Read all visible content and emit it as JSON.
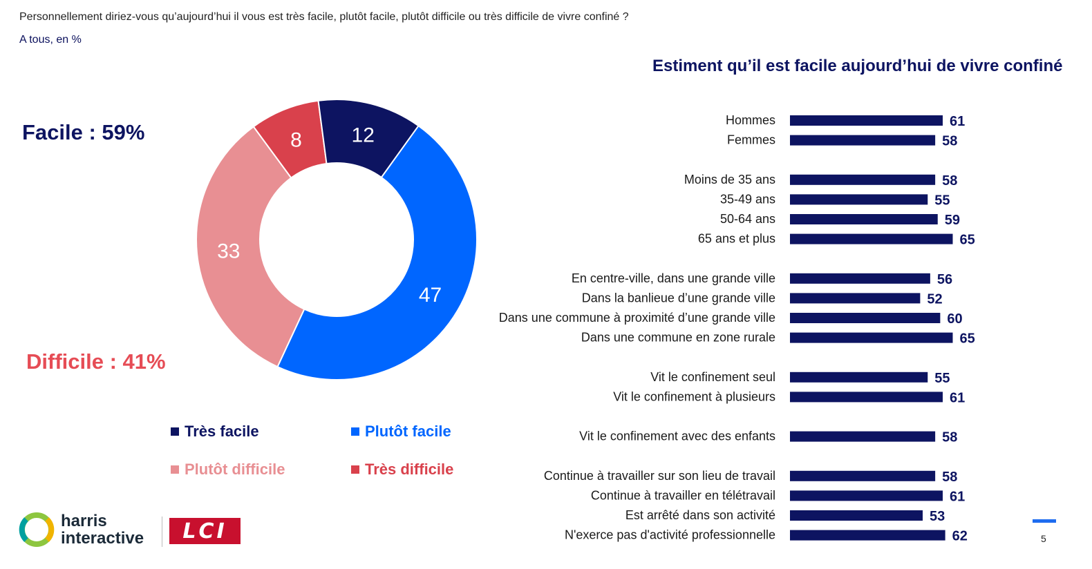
{
  "header": {
    "question": "Personnellement diriez-vous qu’aujourd’hui il vous est très facile, plutôt facile, plutôt difficile ou très difficile de vivre confiné ?",
    "base": "A tous, en %"
  },
  "totals": {
    "facile": "Facile : 59%",
    "difficile": "Difficile : 41%"
  },
  "colors": {
    "tres_facile": "#0d1461",
    "plutot_facile": "#0066ff",
    "plutot_difficile": "#e88f93",
    "tres_difficile": "#d9414c",
    "bar": "#0d1461",
    "facile_text": "#0d1461",
    "difficile_text": "#e64c55"
  },
  "chart_data": [
    {
      "type": "pie",
      "donut": true,
      "start": "top, clockwise: Plutôt facile, Plutôt difficile, Très difficile, Très facile",
      "slices": [
        {
          "name": "Plutôt facile",
          "value": 47,
          "label": "47",
          "color": "#0066ff"
        },
        {
          "name": "Plutôt difficile",
          "value": 33,
          "label": "33",
          "color": "#e88f93"
        },
        {
          "name": "Très difficile",
          "value": 8,
          "label": "8",
          "color": "#d9414c"
        },
        {
          "name": "Très facile",
          "value": 12,
          "label": "12",
          "color": "#0d1461"
        }
      ],
      "legend": [
        {
          "label": "Très facile",
          "color": "#0d1461"
        },
        {
          "label": "Plutôt facile",
          "color": "#0066ff"
        },
        {
          "label": "Plutôt difficile",
          "color": "#e88f93"
        },
        {
          "label": "Très difficile",
          "color": "#d9414c"
        }
      ],
      "legend_position": "bottom"
    },
    {
      "type": "bar",
      "orientation": "horizontal",
      "title": "Estiment qu’il est facile aujourd’hui de vivre confiné",
      "groups": [
        {
          "items": [
            {
              "label": "Hommes",
              "value": 61
            },
            {
              "label": "Femmes",
              "value": 58
            }
          ]
        },
        {
          "items": [
            {
              "label": "Moins de 35 ans",
              "value": 58
            },
            {
              "label": "35-49 ans",
              "value": 55
            },
            {
              "label": "50-64 ans",
              "value": 59
            },
            {
              "label": "65 ans et plus",
              "value": 65
            }
          ]
        },
        {
          "items": [
            {
              "label": "En centre-ville, dans une grande ville",
              "value": 56
            },
            {
              "label": "Dans la banlieue d’une grande ville",
              "value": 52
            },
            {
              "label": "Dans une commune à proximité d’une grande ville",
              "value": 60
            },
            {
              "label": "Dans une commune en zone rurale",
              "value": 65
            }
          ]
        },
        {
          "items": [
            {
              "label": "Vit le confinement seul",
              "value": 55
            },
            {
              "label": "Vit le confinement à plusieurs",
              "value": 61
            }
          ]
        },
        {
          "items": [
            {
              "label": "Vit le confinement avec des enfants",
              "value": 58
            }
          ]
        },
        {
          "items": [
            {
              "label": "Continue à travailler sur son lieu de travail",
              "value": 58
            },
            {
              "label": "Continue à travailler en télétravail",
              "value": 61
            },
            {
              "label": "Est arrêté dans son activité",
              "value": 53
            },
            {
              "label": "N'exerce pas d'activité professionnelle",
              "value": 62
            }
          ]
        }
      ],
      "value_labels": true,
      "grid": false
    }
  ],
  "footer": {
    "logo_text_1": "harris",
    "logo_text_2": "interactive",
    "lci_text": "LCI",
    "page_number": "5"
  }
}
